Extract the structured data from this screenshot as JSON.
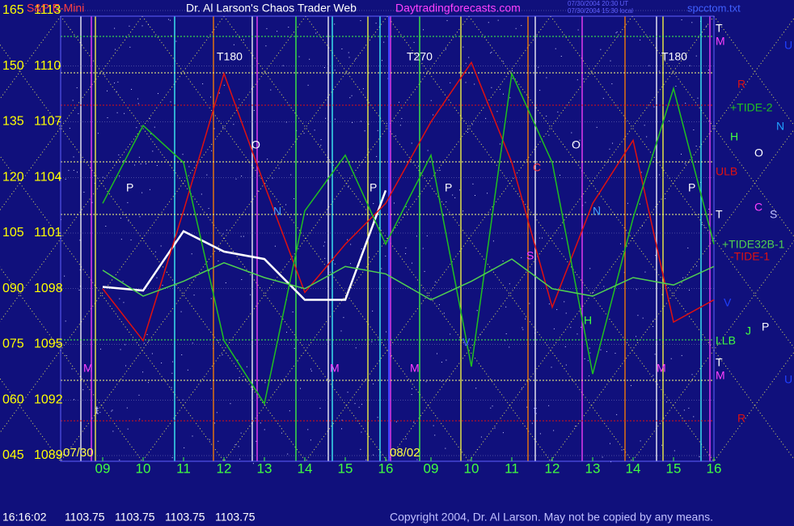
{
  "chart_data": {
    "type": "line",
    "title": "Dr. Al Larson's Chaos Trader Web",
    "subtitle": "Daytradingforecasts.com",
    "file_name": "spcctom.txt",
    "timestamps": [
      "07/30/2004 20:30 UT",
      "07/30/2004 15:30 local"
    ],
    "categories": [
      "09",
      "10",
      "11",
      "12",
      "13",
      "14",
      "15",
      "16",
      "09",
      "10",
      "11",
      "12",
      "13",
      "14",
      "15",
      "16"
    ],
    "dates": [
      "07/30",
      "08/02"
    ],
    "ylim": [
      1089,
      1113
    ],
    "yticks": [
      1089,
      1092,
      1095,
      1098,
      1101,
      1104,
      1107,
      1110,
      1113
    ],
    "y2lim": [
      45,
      165
    ],
    "y2ticks": [
      {
        "value": 45,
        "label": "045"
      },
      {
        "value": 60,
        "label": "060"
      },
      {
        "value": 75,
        "label": "075"
      },
      {
        "value": 90,
        "label": "090"
      },
      105,
      120,
      135,
      150,
      165
    ],
    "series": [
      {
        "name": "S&P E-Mini",
        "color": "#ffffff",
        "values": [
          1098.1,
          1097.9,
          1101.1,
          1100,
          1099.6,
          1097.4,
          1097.4,
          1103.3,
          null,
          null,
          null,
          null,
          null,
          null,
          null,
          null
        ]
      },
      {
        "name": "-TIDE-1",
        "color": "#e01010",
        "axis": "y2",
        "values": [
          90,
          76,
          111,
          148,
          118,
          89,
          102,
          113,
          135,
          151,
          124,
          85,
          113,
          130,
          81,
          87
        ]
      },
      {
        "name": "+TIDE-2",
        "color": "#20c020",
        "axis": "y2",
        "values": [
          113,
          134,
          124,
          76,
          59,
          111,
          126,
          102,
          126,
          69,
          148,
          124,
          67,
          109,
          144,
          102
        ]
      },
      {
        "name": "+TIDE32B-1",
        "color": "#50d050",
        "axis": "y2",
        "values": [
          95,
          88,
          92,
          97,
          93,
          90,
          96,
          94,
          87,
          92,
          98,
          90,
          88,
          93,
          91,
          96
        ]
      }
    ],
    "markers": [
      "T180",
      "T270",
      "T180",
      "P",
      "O",
      "N",
      "P",
      "P",
      "O",
      "N",
      "C",
      "S",
      "P",
      "M",
      "M",
      "M",
      "M",
      "t",
      "t",
      "H",
      "V"
    ],
    "right_labels": [
      "T",
      "M",
      "U",
      "R",
      "H",
      "N",
      "O",
      "ULB",
      "C",
      "S",
      "T",
      "V",
      "LLB",
      "J",
      "P",
      "T",
      "M",
      "U",
      "R"
    ],
    "footer": {
      "time": "16:16:02",
      "quotes": [
        1103.75,
        1103.75,
        1103.75,
        1103.75
      ],
      "copyright": "Copyright 2004, Dr. Al Larson. May not be copied by any means."
    }
  }
}
